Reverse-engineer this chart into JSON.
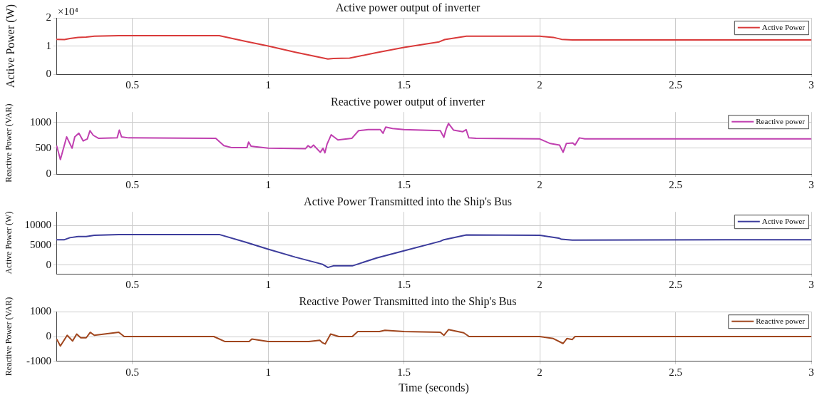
{
  "chart_data": [
    {
      "type": "line",
      "title": "Active power output of inverter",
      "ylabel": "Active Power (W)",
      "annotations": [
        "×10⁴"
      ],
      "legend": "top right",
      "grid": true,
      "xlim": [
        0.22,
        3
      ],
      "xticks": [
        0.5,
        1,
        1.5,
        2,
        2.5,
        3
      ],
      "ylim": [
        0,
        2
      ],
      "yticks": [
        0,
        1,
        2
      ],
      "x": [
        0.22,
        0.25,
        0.27,
        0.3,
        0.33,
        0.36,
        0.45,
        0.5,
        0.82,
        0.92,
        1.0,
        1.1,
        1.22,
        1.24,
        1.3,
        1.4,
        1.5,
        1.63,
        1.65,
        1.73,
        2.0,
        2.05,
        2.08,
        2.12,
        3
      ],
      "series": [
        {
          "name": "Active Power",
          "color": "#d93a3a",
          "values": [
            1.24,
            1.23,
            1.27,
            1.31,
            1.32,
            1.35,
            1.37,
            1.37,
            1.37,
            1.16,
            1.0,
            0.78,
            0.54,
            0.56,
            0.57,
            0.77,
            0.95,
            1.15,
            1.23,
            1.35,
            1.35,
            1.31,
            1.24,
            1.22,
            1.22
          ]
        }
      ]
    },
    {
      "type": "line",
      "title": "Reactive power output of inverter",
      "ylabel": "Reactive Power (VAR)",
      "legend": "top right",
      "grid": true,
      "xlim": [
        0.22,
        3
      ],
      "xticks": [
        0.5,
        1,
        1.5,
        2,
        2.5,
        3
      ],
      "ylim": [
        0,
        1200
      ],
      "yticks": [
        0,
        500,
        1000
      ],
      "x": [
        0.221,
        0.235,
        0.258,
        0.278,
        0.288,
        0.303,
        0.319,
        0.334,
        0.344,
        0.356,
        0.376,
        0.444,
        0.452,
        0.46,
        0.486,
        0.807,
        0.837,
        0.867,
        0.922,
        0.928,
        0.937,
        0.952,
        1.0,
        1.137,
        1.147,
        1.157,
        1.167,
        1.192,
        1.202,
        1.209,
        1.217,
        1.232,
        1.257,
        1.308,
        1.333,
        1.368,
        1.413,
        1.423,
        1.433,
        1.458,
        1.5,
        1.634,
        1.647,
        1.656,
        1.664,
        1.683,
        1.717,
        1.729,
        1.739,
        1.766,
        2.0,
        2.039,
        2.073,
        2.086,
        2.098,
        2.122,
        2.13,
        2.146,
        2.166,
        3
      ],
      "series": [
        {
          "name": "Reactive power",
          "color": "#c040b0",
          "values": [
            550,
            280,
            720,
            500,
            720,
            790,
            640,
            680,
            840,
            750,
            690,
            700,
            850,
            720,
            700,
            690,
            550,
            510,
            510,
            620,
            540,
            530,
            500,
            490,
            550,
            510,
            560,
            420,
            500,
            410,
            580,
            760,
            660,
            690,
            840,
            860,
            860,
            790,
            910,
            880,
            860,
            840,
            710,
            880,
            980,
            850,
            820,
            860,
            700,
            690,
            680,
            590,
            560,
            420,
            590,
            600,
            560,
            700,
            680,
            680
          ]
        }
      ]
    },
    {
      "type": "line",
      "title": "Active Power Transmitted into the Ship's Bus",
      "ylabel": "Active Power (W)",
      "legend": "top right",
      "grid": true,
      "xlim": [
        0.22,
        3
      ],
      "xticks": [
        0.5,
        1,
        1.5,
        2,
        2.5,
        3
      ],
      "ylim": [
        -2200,
        13400
      ],
      "yticks": [
        0,
        5000,
        10000
      ],
      "x": [
        0.22,
        0.25,
        0.27,
        0.3,
        0.33,
        0.36,
        0.45,
        0.5,
        0.82,
        0.92,
        1.0,
        1.1,
        1.2,
        1.22,
        1.24,
        1.31,
        1.4,
        1.5,
        1.634,
        1.647,
        1.73,
        2.0,
        2.07,
        2.08,
        2.12,
        3
      ],
      "series": [
        {
          "name": "Active Power",
          "color": "#3c3c9c",
          "values": [
            6400,
            6400,
            6900,
            7200,
            7200,
            7500,
            7700,
            7700,
            7700,
            5700,
            4000,
            2000,
            200,
            -600,
            -200,
            -200,
            1800,
            3600,
            6000,
            6400,
            7600,
            7500,
            6800,
            6500,
            6300,
            6400
          ]
        }
      ]
    },
    {
      "type": "line",
      "title": "Reactive Power Transmitted into the Ship's Bus",
      "ylabel": "Reactive Power (VAR)",
      "xlabel": "Time (seconds)",
      "legend": "top right",
      "grid": true,
      "xlim": [
        0.22,
        3
      ],
      "xticks": [
        0.5,
        1,
        1.5,
        2,
        2.5,
        3
      ],
      "ylim": [
        -1000,
        1000
      ],
      "yticks": [
        -1000,
        0,
        1000
      ],
      "x": [
        0.221,
        0.235,
        0.26,
        0.28,
        0.295,
        0.31,
        0.33,
        0.345,
        0.36,
        0.45,
        0.47,
        0.8,
        0.84,
        0.93,
        0.94,
        1.0,
        1.15,
        1.19,
        1.2,
        1.21,
        1.23,
        1.26,
        1.31,
        1.33,
        1.41,
        1.43,
        1.5,
        1.634,
        1.647,
        1.664,
        1.72,
        1.74,
        2.0,
        2.05,
        2.086,
        2.1,
        2.12,
        2.13,
        3
      ],
      "series": [
        {
          "name": "Reactive power",
          "color": "#a0461e",
          "values": [
            -100,
            -380,
            50,
            -180,
            100,
            -50,
            -50,
            170,
            50,
            170,
            0,
            0,
            -200,
            -200,
            -100,
            -200,
            -200,
            -150,
            -250,
            -300,
            100,
            0,
            0,
            200,
            200,
            250,
            200,
            170,
            50,
            280,
            150,
            0,
            0,
            -80,
            -280,
            -80,
            -120,
            0,
            0
          ]
        }
      ]
    }
  ]
}
